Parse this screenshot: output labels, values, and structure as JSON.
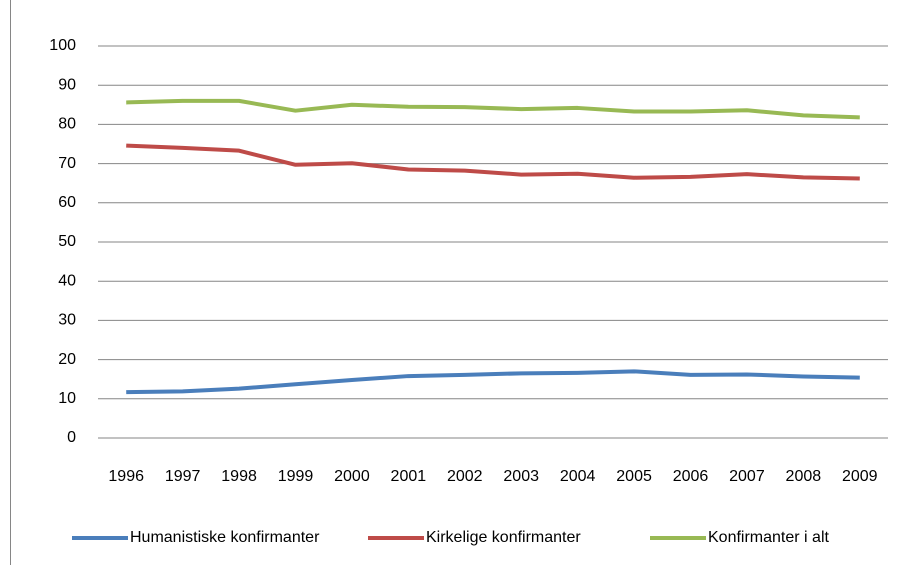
{
  "chart_data": {
    "type": "line",
    "categories": [
      "1996",
      "1997",
      "1998",
      "1999",
      "2000",
      "2001",
      "2002",
      "2003",
      "2004",
      "2005",
      "2006",
      "2007",
      "2008",
      "2009"
    ],
    "series": [
      {
        "name": "Humanistiske konfirmanter",
        "color": "#4a7ebb",
        "values": [
          11.7,
          11.9,
          12.6,
          13.7,
          14.8,
          15.8,
          16.1,
          16.5,
          16.6,
          17.0,
          16.1,
          16.2,
          15.7,
          15.4
        ]
      },
      {
        "name": "Kirkelige konfirmanter",
        "color": "#be4b48",
        "values": [
          74.6,
          74.0,
          73.3,
          69.7,
          70.1,
          68.5,
          68.2,
          67.2,
          67.4,
          66.4,
          66.6,
          67.3,
          66.5,
          66.2
        ]
      },
      {
        "name": "Konfirmanter i alt",
        "color": "#98b954",
        "values": [
          85.6,
          86.0,
          86.0,
          83.5,
          85.0,
          84.5,
          84.4,
          83.9,
          84.2,
          83.3,
          83.3,
          83.6,
          82.3,
          81.8
        ]
      }
    ],
    "ylim": [
      0,
      100
    ],
    "yticks": [
      0,
      10,
      20,
      30,
      40,
      50,
      60,
      70,
      80,
      90,
      100
    ],
    "grid": true,
    "legend": "bottom"
  }
}
